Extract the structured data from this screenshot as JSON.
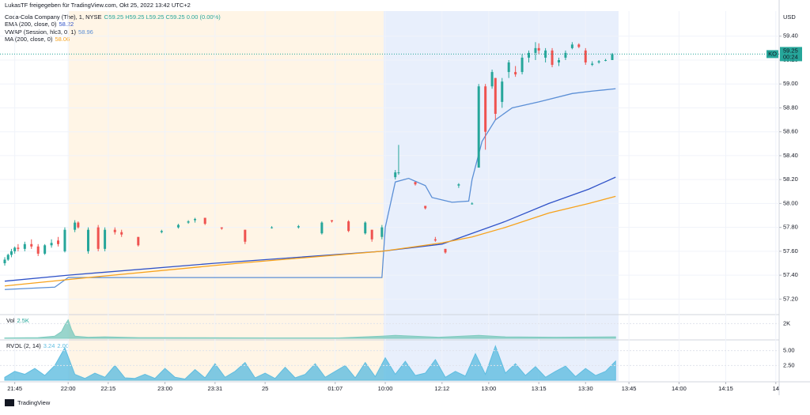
{
  "header": {
    "text": "LukasTF freigegeben für TradingView.com, Okt 25, 2022 13:42 UTC+2"
  },
  "footer": {
    "brand": "TradingView"
  },
  "chart_data": [
    {
      "type": "candlestick",
      "title": "Coca-Cola Company (The), 1, NYSE",
      "ohlc_text": "O59.25 H59.25 L59.25 C59.25 0.00 (0.00%)",
      "currency": "USD",
      "symbol": "KO",
      "last_price_label": "59.25",
      "countdown": "00:24",
      "up_color": "#26a69a",
      "down_color": "#ef5350",
      "x": [
        0,
        1,
        2,
        3,
        4,
        6,
        8,
        10,
        12,
        14,
        16,
        18,
        21,
        22,
        25,
        28,
        30,
        33,
        35,
        40,
        47,
        52,
        55,
        57,
        60,
        65,
        72,
        80,
        88,
        95,
        98,
        103,
        108,
        110,
        113,
        117,
        118,
        123,
        126,
        129,
        132,
        136,
        140,
        142,
        144,
        146,
        147,
        149,
        151,
        153,
        155,
        157,
        159,
        160,
        162,
        164,
        166,
        168,
        170,
        172,
        174,
        176,
        178,
        180,
        182
      ],
      "open": [
        57.5,
        57.53,
        57.57,
        57.6,
        57.63,
        57.62,
        57.66,
        57.64,
        57.58,
        57.65,
        57.69,
        57.6,
        57.78,
        57.84,
        57.6,
        57.8,
        57.62,
        57.78,
        57.76,
        57.72,
        57.76,
        57.8,
        57.84,
        57.86,
        57.88,
        57.8,
        57.78,
        57.8,
        57.8,
        57.75,
        57.86,
        57.85,
        57.75,
        57.78,
        57.72,
        58.22,
        58.26,
        58.18,
        57.98,
        57.7,
        57.62,
        58.15,
        58.0,
        58.3,
        58.98,
        58.98,
        59.05,
        58.85,
        59.1,
        59.1,
        59.1,
        59.22,
        59.26,
        59.3,
        59.22,
        59.28,
        59.18,
        59.22,
        59.3,
        59.33,
        59.28,
        59.16,
        59.18,
        59.2,
        59.2
      ],
      "high": [
        57.55,
        57.58,
        57.62,
        57.64,
        57.66,
        57.68,
        57.7,
        57.66,
        57.66,
        57.7,
        57.72,
        57.8,
        57.86,
        57.85,
        57.8,
        57.82,
        57.8,
        57.8,
        57.78,
        57.72,
        57.78,
        57.83,
        57.86,
        57.88,
        57.88,
        57.8,
        57.78,
        57.81,
        57.82,
        57.85,
        57.86,
        57.86,
        57.85,
        57.78,
        57.82,
        58.28,
        58.49,
        58.18,
        57.98,
        57.72,
        57.62,
        58.17,
        58.01,
        59.0,
        59.0,
        59.12,
        59.05,
        59.05,
        59.2,
        59.15,
        59.25,
        59.28,
        59.35,
        59.34,
        59.3,
        59.3,
        59.22,
        59.28,
        59.35,
        59.34,
        59.3,
        59.19,
        59.2,
        59.21,
        59.26
      ],
      "low": [
        57.48,
        57.52,
        57.55,
        57.58,
        57.6,
        57.6,
        57.62,
        57.56,
        57.57,
        57.63,
        57.64,
        57.59,
        57.76,
        57.79,
        57.58,
        57.6,
        57.6,
        57.74,
        57.72,
        57.64,
        57.75,
        57.79,
        57.83,
        57.84,
        57.82,
        57.78,
        57.66,
        57.79,
        57.79,
        57.74,
        57.84,
        57.76,
        57.74,
        57.68,
        57.7,
        58.2,
        58.24,
        58.15,
        57.95,
        57.68,
        57.58,
        58.13,
        57.99,
        58.3,
        58.45,
        58.96,
        58.7,
        58.8,
        59.05,
        59.06,
        59.08,
        59.18,
        59.2,
        59.25,
        59.18,
        59.14,
        59.15,
        59.2,
        59.29,
        59.3,
        59.16,
        59.15,
        59.17,
        59.19,
        59.2
      ],
      "close": [
        57.53,
        57.57,
        57.6,
        57.63,
        57.62,
        57.66,
        57.64,
        57.58,
        57.65,
        57.67,
        57.66,
        57.78,
        57.84,
        57.8,
        57.78,
        57.62,
        57.78,
        57.76,
        57.74,
        57.65,
        57.77,
        57.82,
        57.85,
        57.87,
        57.83,
        57.79,
        57.68,
        57.8,
        57.81,
        57.84,
        57.85,
        57.77,
        57.84,
        57.7,
        57.8,
        58.26,
        58.26,
        58.16,
        57.96,
        57.69,
        57.59,
        58.16,
        58.0,
        58.98,
        58.6,
        59.1,
        58.75,
        59.02,
        59.18,
        59.08,
        59.22,
        59.26,
        59.3,
        59.28,
        59.28,
        59.16,
        59.2,
        59.26,
        59.33,
        59.31,
        59.18,
        59.17,
        59.19,
        59.2,
        59.25
      ],
      "overlays": [
        {
          "name": "EMA (200, close, 0)",
          "last_label": "58.22",
          "color": "#2f52c8",
          "x": [
            0,
            19,
            63,
            113,
            131,
            138,
            150,
            163,
            175,
            183
          ],
          "values": [
            57.35,
            57.4,
            57.5,
            57.6,
            57.66,
            57.73,
            57.85,
            58.0,
            58.12,
            58.22
          ]
        },
        {
          "name": "VWAP (Session, hlc3, 0, 1)",
          "last_label": "58.96",
          "color": "#5b8fd6",
          "x": [
            0,
            15,
            19,
            113,
            114,
            117,
            121,
            126,
            128,
            134,
            139,
            140,
            143,
            147,
            152,
            160,
            170,
            176,
            183
          ],
          "values": [
            57.28,
            57.3,
            57.38,
            57.38,
            57.8,
            58.18,
            58.21,
            58.15,
            58.05,
            58.01,
            58.02,
            58.2,
            58.52,
            58.7,
            58.8,
            58.85,
            58.92,
            58.94,
            58.96
          ]
        },
        {
          "name": "MA (200, close, 0)",
          "last_label": "58.06",
          "color": "#f7a21b",
          "x": [
            0,
            25,
            70,
            113,
            131,
            140,
            150,
            163,
            175,
            183
          ],
          "values": [
            57.31,
            57.38,
            57.5,
            57.6,
            57.67,
            57.72,
            57.8,
            57.92,
            58.0,
            58.06
          ]
        }
      ],
      "xlim": [
        0,
        232
      ],
      "ylim": [
        57.07,
        59.61
      ],
      "yticks": [
        {
          "value": 59.4,
          "label": "59.40"
        },
        {
          "value": 59.2,
          "label": "59.20"
        },
        {
          "value": 59,
          "label": "59.00"
        },
        {
          "value": 58.8,
          "label": "58.80"
        },
        {
          "value": 58.6,
          "label": "58.60"
        },
        {
          "value": 58.4,
          "label": "58.40"
        },
        {
          "value": 58.2,
          "label": "58.20"
        },
        {
          "value": 58,
          "label": "58.00"
        },
        {
          "value": 57.8,
          "label": "57.80"
        },
        {
          "value": 57.6,
          "label": "57.60"
        },
        {
          "value": 57.4,
          "label": "57.40"
        },
        {
          "value": 57.2,
          "label": "57.20"
        }
      ],
      "xticks": [
        {
          "value": 3,
          "label": "21:45"
        },
        {
          "value": 19,
          "label": "22:00"
        },
        {
          "value": 31,
          "label": "22:15"
        },
        {
          "value": 48,
          "label": "23:00"
        },
        {
          "value": 63,
          "label": "23:31"
        },
        {
          "value": 78,
          "label": "25"
        },
        {
          "value": 99,
          "label": "01:07"
        },
        {
          "value": 114,
          "label": "10:00"
        },
        {
          "value": 131,
          "label": "12:12"
        },
        {
          "value": 145,
          "label": "13:00"
        },
        {
          "value": 160,
          "label": "13:15"
        },
        {
          "value": 174,
          "label": "13:30"
        },
        {
          "value": 187,
          "label": "13:45"
        },
        {
          "value": 202,
          "label": "14:00"
        },
        {
          "value": 216,
          "label": "14:15"
        },
        {
          "value": 231,
          "label": "14"
        }
      ],
      "grid": true
    },
    {
      "type": "area",
      "name": "Vol",
      "last_label": "2.5K",
      "color": "#7fcbbf",
      "x": [
        0,
        10,
        15,
        17,
        18,
        19,
        20,
        21,
        25,
        30,
        40,
        60,
        80,
        100,
        113,
        117,
        130,
        142,
        150,
        165,
        183
      ],
      "values": [
        50,
        100,
        300,
        900,
        1800,
        2500,
        1200,
        300,
        150,
        200,
        100,
        80,
        50,
        60,
        300,
        400,
        150,
        400,
        200,
        150,
        200
      ],
      "ylim": [
        0,
        3000
      ],
      "yticks": [
        {
          "value": 2000,
          "label": "2K"
        }
      ]
    },
    {
      "type": "area",
      "name": "RVOL (2, 14)",
      "params_labels": [
        "3.24",
        "2.00"
      ],
      "color": "#5fbde0",
      "x": [
        0,
        3,
        6,
        9,
        12,
        15,
        18,
        21,
        24,
        27,
        30,
        33,
        36,
        39,
        42,
        45,
        48,
        51,
        54,
        57,
        60,
        63,
        66,
        69,
        72,
        75,
        78,
        81,
        84,
        87,
        90,
        93,
        96,
        99,
        102,
        105,
        108,
        111,
        114,
        117,
        120,
        123,
        126,
        129,
        132,
        135,
        138,
        141,
        144,
        147,
        150,
        153,
        156,
        159,
        162,
        165,
        168,
        171,
        174,
        177,
        180,
        183
      ],
      "values": [
        0.5,
        1.5,
        1.0,
        2.0,
        0.8,
        2.5,
        5.5,
        1.0,
        0.3,
        1.2,
        0.5,
        2.5,
        0.4,
        0.3,
        1.0,
        0.3,
        2.0,
        0.5,
        0.2,
        1.8,
        0.4,
        2.8,
        0.5,
        1.5,
        3.0,
        0.4,
        1.2,
        0.3,
        2.2,
        0.4,
        1.0,
        2.8,
        0.5,
        1.5,
        2.5,
        0.4,
        3.0,
        0.6,
        3.8,
        1.0,
        3.2,
        0.8,
        1.2,
        3.5,
        0.5,
        1.5,
        0.7,
        4.5,
        1.0,
        5.8,
        1.2,
        2.8,
        0.8,
        2.3,
        0.5,
        1.5,
        2.4,
        0.6,
        2.0,
        0.8,
        1.5,
        3.24
      ],
      "ylim": [
        0,
        6.7
      ],
      "yticks": [
        {
          "value": 5,
          "label": "5.00"
        },
        {
          "value": 2.5,
          "label": "2.50"
        }
      ]
    }
  ]
}
